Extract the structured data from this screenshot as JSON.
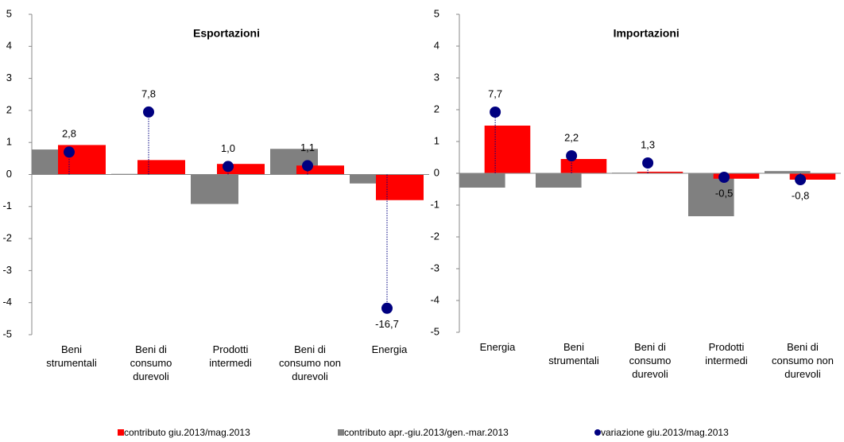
{
  "chart_data": [
    {
      "type": "bar",
      "title": "Esportazioni",
      "categories": [
        "Beni strumentali",
        "Beni di consumo durevoli",
        "Prodotti intermedi",
        "Beni di consumo non durevoli",
        "Energia"
      ],
      "ylim": [
        -5,
        5
      ],
      "yticks": [
        -5,
        -4,
        -3,
        -2,
        -1,
        0,
        1,
        2,
        3,
        4,
        5
      ],
      "y2lim": [
        -20,
        20
      ],
      "series": [
        {
          "name": "contributo giu.2013/mag.2013",
          "color": "#ff0000",
          "values": [
            0.92,
            0.45,
            0.33,
            0.28,
            -0.8
          ]
        },
        {
          "name": "contributo apr.-giu.2013/gen.-mar.2013",
          "color": "#808080",
          "values": [
            0.78,
            0.02,
            -0.92,
            0.8,
            -0.28
          ]
        },
        {
          "name": "variazione giu.2013/mag.2013",
          "color": "#000080",
          "axis": "y2",
          "values": [
            2.8,
            7.8,
            1.0,
            1.1,
            -16.7
          ],
          "value_labels": [
            "2,8",
            "7,8",
            "1,0",
            "1,1",
            "-16,7"
          ]
        }
      ]
    },
    {
      "type": "bar",
      "title": "Importazioni",
      "categories": [
        "Energia",
        "Beni strumentali",
        "Beni di consumo durevoli",
        "Prodotti intermedi",
        "Beni di consumo non durevoli"
      ],
      "ylim": [
        -5,
        5
      ],
      "yticks": [
        -5,
        -4,
        -3,
        -2,
        -1,
        0,
        1,
        2,
        3,
        4,
        5
      ],
      "y2lim": [
        -20,
        20
      ],
      "series": [
        {
          "color": "#ff0000",
          "values": [
            1.5,
            0.45,
            0.05,
            -0.17,
            -0.2
          ]
        },
        {
          "color": "#808080",
          "values": [
            -0.45,
            -0.45,
            0.02,
            -1.35,
            0.07
          ]
        },
        {
          "color": "#000080",
          "axis": "y2",
          "values": [
            7.7,
            2.2,
            1.3,
            -0.5,
            -0.8
          ],
          "value_labels": [
            "7,7",
            "2,2",
            "1,3",
            "-0,5",
            "-0,8"
          ]
        }
      ]
    }
  ]
}
